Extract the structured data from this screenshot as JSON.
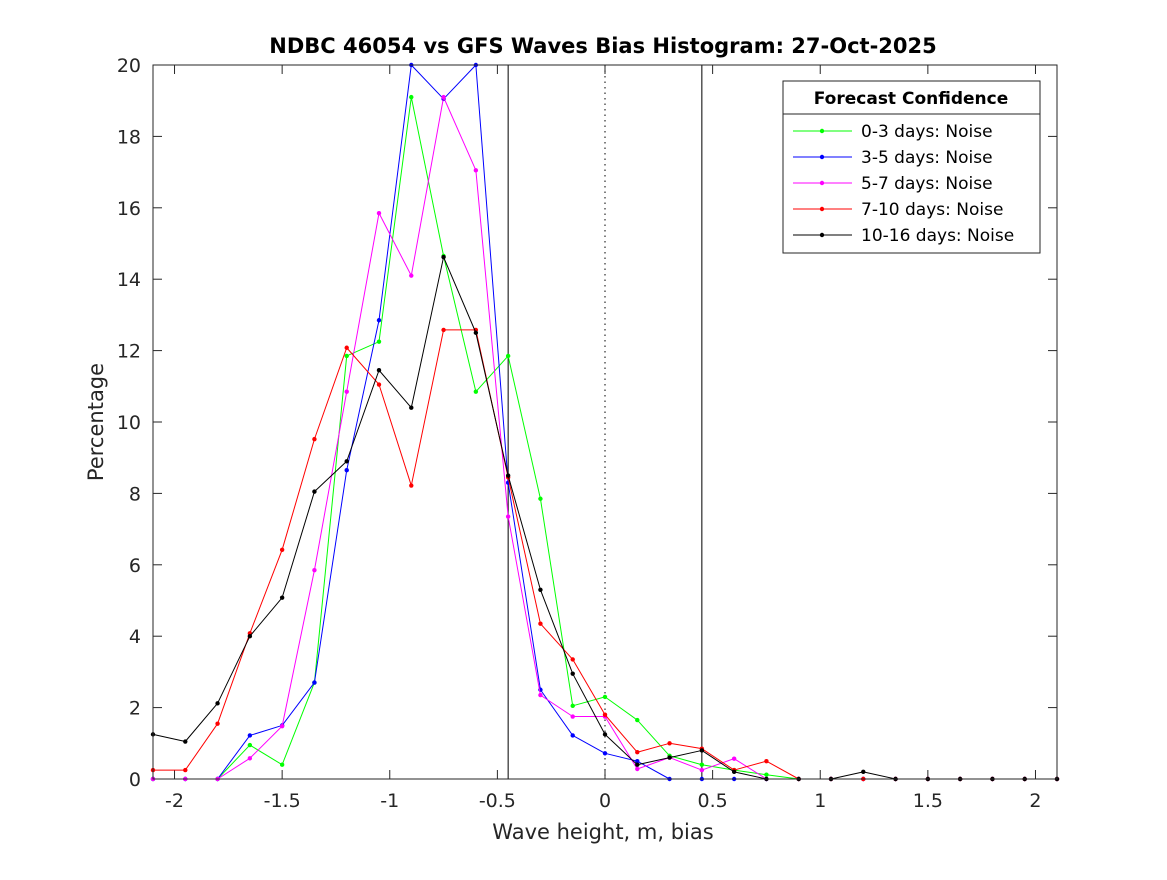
{
  "chart_data": {
    "type": "line",
    "title": "NDBC 46054 vs GFS Waves Bias Histogram: 27-Oct-2025",
    "xlabel": "Wave height, m, bias",
    "ylabel": "Percentage",
    "xlim": [
      -2.1,
      2.1
    ],
    "ylim": [
      0,
      20
    ],
    "xticks": [
      -2,
      -1.5,
      -1,
      -0.5,
      0,
      0.5,
      1,
      1.5,
      2
    ],
    "xtick_labels": [
      "-2",
      "-1.5",
      "-1",
      "-0.5",
      "0",
      "0.5",
      "1",
      "1.5",
      "2"
    ],
    "yticks": [
      0,
      2,
      4,
      6,
      8,
      10,
      12,
      14,
      16,
      18,
      20
    ],
    "ytick_labels": [
      "0",
      "2",
      "4",
      "6",
      "8",
      "10",
      "12",
      "14",
      "16",
      "18",
      "20"
    ],
    "grid": false,
    "legend_title": "Forecast Confidence",
    "legend_position": "top-right",
    "vertical_lines": [
      {
        "x": -0.45,
        "style": "solid",
        "color": "#000000"
      },
      {
        "x": 0,
        "style": "dotted",
        "color": "#000000"
      },
      {
        "x": 0.45,
        "style": "solid",
        "color": "#000000"
      }
    ],
    "x": [
      -2.1,
      -1.95,
      -1.8,
      -1.65,
      -1.5,
      -1.35,
      -1.2,
      -1.05,
      -0.9,
      -0.75,
      -0.6,
      -0.45,
      -0.3,
      -0.15,
      0,
      0.15,
      0.3,
      0.45,
      0.6,
      0.75,
      0.9,
      1.05,
      1.2,
      1.35,
      1.5,
      1.65,
      1.8,
      1.95,
      2.1
    ],
    "series": [
      {
        "name": "0-3 days: Noise",
        "color": "#00ff00",
        "values": [
          0,
          0,
          0,
          0.95,
          0.4,
          2.7,
          11.85,
          12.25,
          19.1,
          14.65,
          10.85,
          11.85,
          7.85,
          2.05,
          2.3,
          1.65,
          0.65,
          0.4,
          0.25,
          0.12,
          0,
          0,
          0,
          0,
          0,
          0,
          0,
          0,
          0
        ]
      },
      {
        "name": "3-5 days: Noise",
        "color": "#0000ff",
        "values": [
          0,
          0,
          0,
          1.22,
          1.5,
          2.7,
          8.65,
          12.85,
          20.6,
          19.05,
          20.3,
          8.3,
          2.5,
          1.22,
          0.72,
          0.5,
          0,
          0,
          0,
          0,
          0,
          0,
          0,
          0,
          0,
          0,
          0,
          0,
          0
        ]
      },
      {
        "name": "5-7 days: Noise",
        "color": "#ff00ff",
        "values": [
          0,
          0,
          0,
          0.58,
          1.48,
          5.85,
          10.85,
          15.85,
          14.1,
          19.1,
          17.05,
          7.35,
          2.35,
          1.75,
          1.75,
          0.28,
          0.6,
          0.25,
          0.57,
          0,
          0,
          0,
          0,
          0,
          0,
          0,
          0,
          0,
          0
        ]
      },
      {
        "name": "7-10 days: Noise",
        "color": "#ff0000",
        "values": [
          0.25,
          0.25,
          1.55,
          4.08,
          6.42,
          9.52,
          12.08,
          11.05,
          8.22,
          12.58,
          12.58,
          8.45,
          4.35,
          3.35,
          1.8,
          0.75,
          1.0,
          0.85,
          0.25,
          0.5,
          0,
          0,
          0,
          0,
          0,
          0,
          0,
          0,
          0
        ]
      },
      {
        "name": "10-16 days: Noise",
        "color": "#000000",
        "values": [
          1.25,
          1.05,
          2.12,
          4.0,
          5.08,
          8.05,
          8.9,
          11.45,
          10.4,
          14.62,
          12.5,
          8.5,
          5.3,
          2.95,
          1.25,
          0.4,
          0.6,
          0.8,
          0.2,
          0,
          0,
          0,
          0.2,
          0,
          0,
          0,
          0,
          0,
          0
        ]
      }
    ]
  }
}
